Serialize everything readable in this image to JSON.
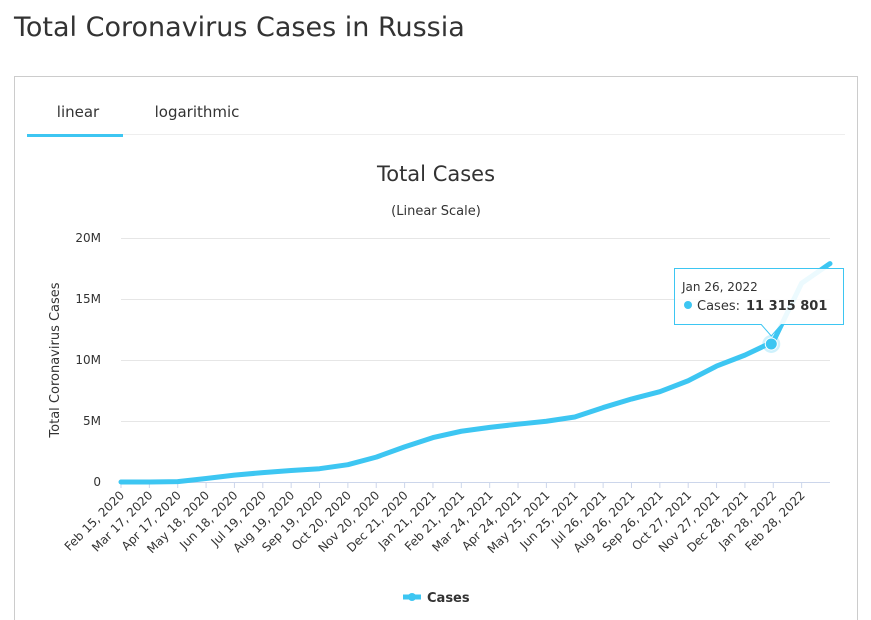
{
  "page": {
    "title": "Total Coronavirus Cases in Russia",
    "tabs": [
      "linear",
      "logarithmic"
    ]
  },
  "chart_data": {
    "type": "line",
    "title": "Total Cases",
    "subtitle": "(Linear Scale)",
    "y_label": "Total Coronavirus Cases",
    "categories": [
      "Feb 15, 2020",
      "Mar 17, 2020",
      "Apr 17, 2020",
      "May 18, 2020",
      "Jun 18, 2020",
      "Jul 19, 2020",
      "Aug 19, 2020",
      "Sep 19, 2020",
      "Oct 20, 2020",
      "Nov 20, 2020",
      "Dec 21, 2020",
      "Jan 21, 2021",
      "Feb 21, 2021",
      "Mar 24, 2021",
      "Apr 24, 2021",
      "May 25, 2021",
      "Jun 25, 2021",
      "Jul 26, 2021",
      "Aug 26, 2021",
      "Sep 26, 2021",
      "Oct 27, 2021",
      "Nov 27, 2021",
      "Dec 28, 2021",
      "Jan 28, 2022",
      "Feb 28, 2022",
      null
    ],
    "series": [
      {
        "name": "Cases",
        "color": "#3dc6f2",
        "values": [
          0,
          0,
          32000,
          290000,
          560000,
          770000,
          940000,
          1090000,
          1420000,
          2040000,
          2880000,
          3640000,
          4160000,
          4480000,
          4740000,
          4980000,
          5330000,
          6100000,
          6800000,
          7400000,
          8300000,
          9500000,
          10400000,
          11500000,
          16300000,
          17900000
        ]
      }
    ],
    "ylim": [
      0,
      20000000
    ],
    "yticks": [
      0,
      {
        "value": 5000000,
        "label": "5M"
      },
      {
        "value": 10000000,
        "label": "10M"
      },
      {
        "value": 15000000,
        "label": "15M"
      },
      {
        "value": 20000000,
        "label": "20M"
      }
    ],
    "grid": true,
    "legend": "bottom",
    "tooltip": {
      "date": "Jan 26, 2022",
      "label": "Cases:",
      "value": 11315801,
      "value_label": "11 315 801"
    }
  }
}
